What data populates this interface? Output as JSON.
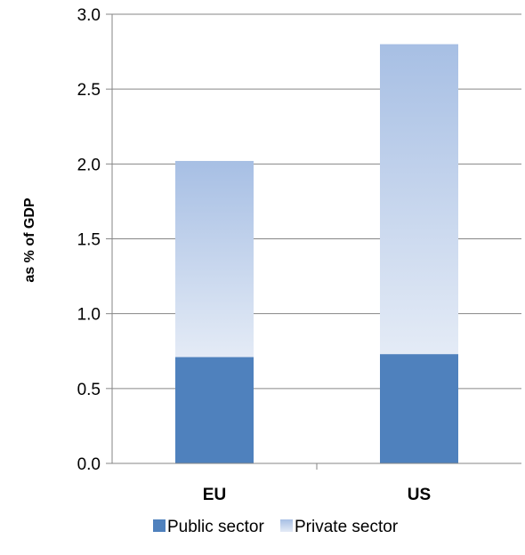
{
  "chart_data": {
    "type": "bar",
    "stacked": true,
    "categories": [
      "EU",
      "US"
    ],
    "series": [
      {
        "name": "Public sector",
        "values": [
          0.71,
          0.73
        ],
        "color": "#4f81bd"
      },
      {
        "name": "Private sector",
        "values": [
          1.31,
          2.07
        ],
        "color": "#a7bfe4",
        "color_light": "#e4ebf6"
      }
    ],
    "title": "",
    "xlabel": "",
    "ylabel": "as % of GDP",
    "ylim": [
      0,
      3.0
    ],
    "yticks": [
      "0.0",
      "0.5",
      "1.0",
      "1.5",
      "2.0",
      "2.5",
      "3.0"
    ],
    "grid": true,
    "legend_position": "bottom"
  }
}
